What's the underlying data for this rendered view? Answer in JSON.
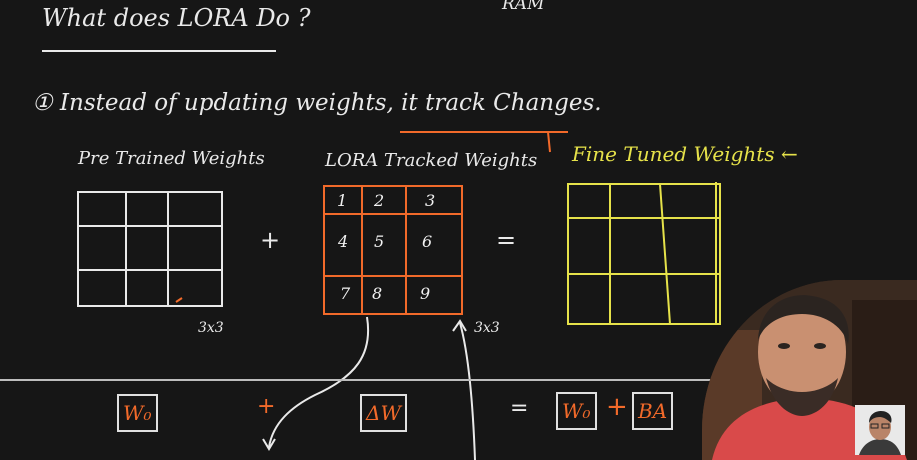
{
  "slide": {
    "title": "What does LORA Do ?",
    "ram_note": "RAM",
    "point": "① Instead of updating weights, it track Changes.",
    "pretrained_label": "Pre Trained Weights",
    "lora_label": "LORA Tracked Weights",
    "fine_label": "Fine Tuned Weights ←",
    "plus": "+",
    "equals": "=",
    "dim_left": "3x3",
    "dim_right": "3x3",
    "lora_cells": [
      "1",
      "2",
      "3",
      "4",
      "5",
      "6",
      "7",
      "8",
      "9"
    ]
  },
  "formula": {
    "w0": "W₀",
    "plus": "+",
    "delta_w": "ΔW",
    "equals": "=",
    "w0_right": "W₀",
    "plus_right": "+",
    "ba": "BA"
  },
  "colors": {
    "accent_orange": "#f26a2a",
    "fine_yellow": "#e6e24a",
    "ink": "#e9e9e9",
    "board": "#161616"
  }
}
